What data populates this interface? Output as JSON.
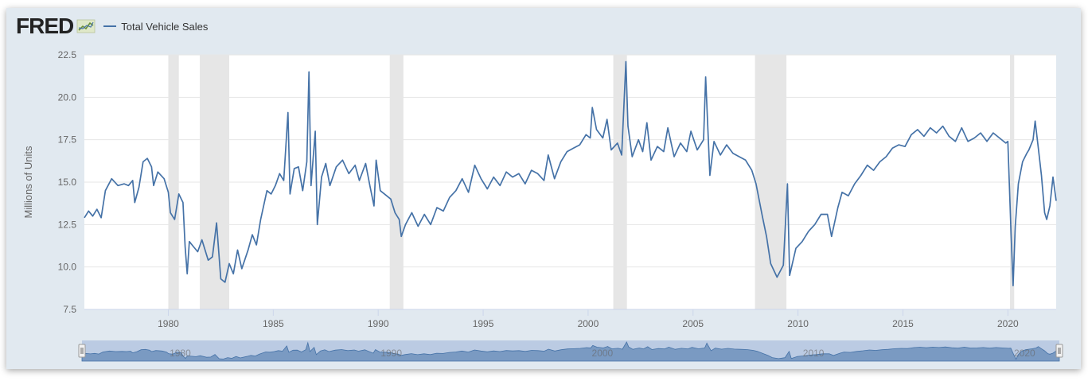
{
  "header": {
    "logo": "FRED",
    "logo_icon": "chart-line-icon"
  },
  "colors": {
    "line": "#4572a7",
    "recession": "#e6e6e6",
    "frame": "#e1e9f0",
    "navigator": "#b4c6e0"
  },
  "chart_data": {
    "type": "line",
    "title": "",
    "ylabel": "Millions of Units",
    "xlabel": "",
    "ylim": [
      7.5,
      22.5
    ],
    "xlim": [
      1976.0,
      2022.3
    ],
    "yticks": [
      "7.5",
      "10.0",
      "12.5",
      "15.0",
      "17.5",
      "20.0",
      "22.5"
    ],
    "xticks": [
      "1980",
      "1985",
      "1990",
      "1995",
      "2000",
      "2005",
      "2010",
      "2015",
      "2020"
    ],
    "legend": "top-left",
    "grid": true,
    "recessions": [
      [
        1980.0,
        1980.5
      ],
      [
        1981.5,
        1982.9
      ],
      [
        1990.55,
        1991.2
      ],
      [
        2001.2,
        2001.85
      ],
      [
        2007.95,
        2009.45
      ],
      [
        2020.1,
        2020.3
      ]
    ],
    "navigator_labels": [
      "1980",
      "1990",
      "2000",
      "2010",
      "2020"
    ],
    "series": [
      {
        "name": "Total Vehicle Sales",
        "points": [
          [
            1976.0,
            12.9
          ],
          [
            1976.2,
            13.3
          ],
          [
            1976.4,
            13.0
          ],
          [
            1976.6,
            13.4
          ],
          [
            1976.8,
            12.9
          ],
          [
            1977.0,
            14.5
          ],
          [
            1977.3,
            15.2
          ],
          [
            1977.6,
            14.8
          ],
          [
            1977.9,
            14.9
          ],
          [
            1978.1,
            14.8
          ],
          [
            1978.3,
            15.1
          ],
          [
            1978.4,
            13.8
          ],
          [
            1978.6,
            14.7
          ],
          [
            1978.8,
            16.2
          ],
          [
            1979.0,
            16.4
          ],
          [
            1979.2,
            15.9
          ],
          [
            1979.3,
            14.8
          ],
          [
            1979.5,
            15.6
          ],
          [
            1979.8,
            15.2
          ],
          [
            1980.0,
            14.4
          ],
          [
            1980.1,
            13.2
          ],
          [
            1980.3,
            12.8
          ],
          [
            1980.5,
            14.3
          ],
          [
            1980.7,
            13.8
          ],
          [
            1980.8,
            11.2
          ],
          [
            1980.9,
            9.6
          ],
          [
            1981.0,
            11.5
          ],
          [
            1981.2,
            11.2
          ],
          [
            1981.4,
            10.9
          ],
          [
            1981.6,
            11.6
          ],
          [
            1981.9,
            10.4
          ],
          [
            1982.1,
            10.6
          ],
          [
            1982.3,
            12.6
          ],
          [
            1982.5,
            9.3
          ],
          [
            1982.7,
            9.1
          ],
          [
            1982.9,
            10.2
          ],
          [
            1983.1,
            9.6
          ],
          [
            1983.3,
            11.0
          ],
          [
            1983.5,
            9.9
          ],
          [
            1983.8,
            11.0
          ],
          [
            1984.0,
            11.9
          ],
          [
            1984.2,
            11.3
          ],
          [
            1984.4,
            12.8
          ],
          [
            1984.7,
            14.5
          ],
          [
            1984.9,
            14.3
          ],
          [
            1985.1,
            14.8
          ],
          [
            1985.3,
            15.5
          ],
          [
            1985.5,
            15.1
          ],
          [
            1985.7,
            19.1
          ],
          [
            1985.8,
            14.3
          ],
          [
            1986.0,
            15.8
          ],
          [
            1986.2,
            15.9
          ],
          [
            1986.4,
            14.5
          ],
          [
            1986.6,
            16.2
          ],
          [
            1986.7,
            21.5
          ],
          [
            1986.8,
            14.8
          ],
          [
            1987.0,
            18.0
          ],
          [
            1987.1,
            12.5
          ],
          [
            1987.3,
            15.3
          ],
          [
            1987.5,
            16.1
          ],
          [
            1987.7,
            14.8
          ],
          [
            1988.0,
            15.9
          ],
          [
            1988.3,
            16.3
          ],
          [
            1988.6,
            15.5
          ],
          [
            1988.9,
            16.0
          ],
          [
            1989.1,
            15.1
          ],
          [
            1989.4,
            16.1
          ],
          [
            1989.6,
            14.8
          ],
          [
            1989.8,
            13.6
          ],
          [
            1989.9,
            16.3
          ],
          [
            1990.1,
            14.5
          ],
          [
            1990.3,
            14.3
          ],
          [
            1990.6,
            14.0
          ],
          [
            1990.8,
            13.2
          ],
          [
            1991.0,
            12.8
          ],
          [
            1991.1,
            11.8
          ],
          [
            1991.3,
            12.5
          ],
          [
            1991.6,
            13.2
          ],
          [
            1991.9,
            12.4
          ],
          [
            1992.2,
            13.1
          ],
          [
            1992.5,
            12.5
          ],
          [
            1992.8,
            13.5
          ],
          [
            1993.1,
            13.3
          ],
          [
            1993.4,
            14.1
          ],
          [
            1993.7,
            14.5
          ],
          [
            1994.0,
            15.2
          ],
          [
            1994.3,
            14.4
          ],
          [
            1994.6,
            16.0
          ],
          [
            1994.9,
            15.2
          ],
          [
            1995.2,
            14.6
          ],
          [
            1995.5,
            15.3
          ],
          [
            1995.8,
            14.8
          ],
          [
            1996.1,
            15.6
          ],
          [
            1996.4,
            15.3
          ],
          [
            1996.7,
            15.5
          ],
          [
            1997.0,
            14.9
          ],
          [
            1997.3,
            15.7
          ],
          [
            1997.6,
            15.5
          ],
          [
            1997.9,
            15.1
          ],
          [
            1998.1,
            16.6
          ],
          [
            1998.4,
            15.2
          ],
          [
            1998.7,
            16.2
          ],
          [
            1999.0,
            16.8
          ],
          [
            1999.3,
            17.0
          ],
          [
            1999.6,
            17.2
          ],
          [
            1999.9,
            17.8
          ],
          [
            2000.1,
            17.6
          ],
          [
            2000.2,
            19.4
          ],
          [
            2000.4,
            18.1
          ],
          [
            2000.7,
            17.6
          ],
          [
            2000.9,
            18.7
          ],
          [
            2001.1,
            16.9
          ],
          [
            2001.4,
            17.3
          ],
          [
            2001.6,
            16.6
          ],
          [
            2001.8,
            22.1
          ],
          [
            2001.9,
            18.3
          ],
          [
            2002.1,
            16.5
          ],
          [
            2002.4,
            17.5
          ],
          [
            2002.6,
            16.8
          ],
          [
            2002.8,
            18.5
          ],
          [
            2003.0,
            16.3
          ],
          [
            2003.3,
            17.1
          ],
          [
            2003.6,
            16.8
          ],
          [
            2003.8,
            18.2
          ],
          [
            2004.1,
            16.5
          ],
          [
            2004.4,
            17.3
          ],
          [
            2004.7,
            16.8
          ],
          [
            2004.9,
            18.0
          ],
          [
            2005.2,
            16.9
          ],
          [
            2005.5,
            17.5
          ],
          [
            2005.6,
            21.2
          ],
          [
            2005.8,
            15.4
          ],
          [
            2006.0,
            17.4
          ],
          [
            2006.3,
            16.6
          ],
          [
            2006.6,
            17.2
          ],
          [
            2006.9,
            16.7
          ],
          [
            2007.2,
            16.5
          ],
          [
            2007.5,
            16.3
          ],
          [
            2007.8,
            15.7
          ],
          [
            2008.0,
            14.9
          ],
          [
            2008.3,
            13.0
          ],
          [
            2008.5,
            11.8
          ],
          [
            2008.7,
            10.2
          ],
          [
            2009.0,
            9.4
          ],
          [
            2009.3,
            10.1
          ],
          [
            2009.5,
            14.9
          ],
          [
            2009.6,
            9.5
          ],
          [
            2009.9,
            11.1
          ],
          [
            2010.2,
            11.5
          ],
          [
            2010.5,
            12.1
          ],
          [
            2010.8,
            12.5
          ],
          [
            2011.1,
            13.1
          ],
          [
            2011.4,
            13.1
          ],
          [
            2011.6,
            11.8
          ],
          [
            2011.9,
            13.5
          ],
          [
            2012.1,
            14.4
          ],
          [
            2012.4,
            14.2
          ],
          [
            2012.7,
            14.9
          ],
          [
            2013.0,
            15.4
          ],
          [
            2013.3,
            16.0
          ],
          [
            2013.6,
            15.7
          ],
          [
            2013.9,
            16.2
          ],
          [
            2014.2,
            16.5
          ],
          [
            2014.5,
            17.0
          ],
          [
            2014.8,
            17.2
          ],
          [
            2015.1,
            17.1
          ],
          [
            2015.4,
            17.8
          ],
          [
            2015.7,
            18.1
          ],
          [
            2016.0,
            17.7
          ],
          [
            2016.3,
            18.2
          ],
          [
            2016.6,
            17.9
          ],
          [
            2016.9,
            18.3
          ],
          [
            2017.2,
            17.7
          ],
          [
            2017.5,
            17.4
          ],
          [
            2017.8,
            18.2
          ],
          [
            2018.1,
            17.4
          ],
          [
            2018.4,
            17.6
          ],
          [
            2018.7,
            17.9
          ],
          [
            2019.0,
            17.4
          ],
          [
            2019.3,
            17.9
          ],
          [
            2019.6,
            17.6
          ],
          [
            2019.9,
            17.3
          ],
          [
            2020.0,
            17.4
          ],
          [
            2020.15,
            12.0
          ],
          [
            2020.25,
            8.9
          ],
          [
            2020.35,
            12.4
          ],
          [
            2020.5,
            14.9
          ],
          [
            2020.7,
            16.2
          ],
          [
            2020.9,
            16.7
          ],
          [
            2021.0,
            16.9
          ],
          [
            2021.2,
            17.5
          ],
          [
            2021.3,
            18.6
          ],
          [
            2021.45,
            17.0
          ],
          [
            2021.6,
            15.4
          ],
          [
            2021.75,
            13.2
          ],
          [
            2021.85,
            12.8
          ],
          [
            2022.0,
            13.6
          ],
          [
            2022.15,
            15.3
          ],
          [
            2022.3,
            13.9
          ]
        ]
      }
    ]
  }
}
